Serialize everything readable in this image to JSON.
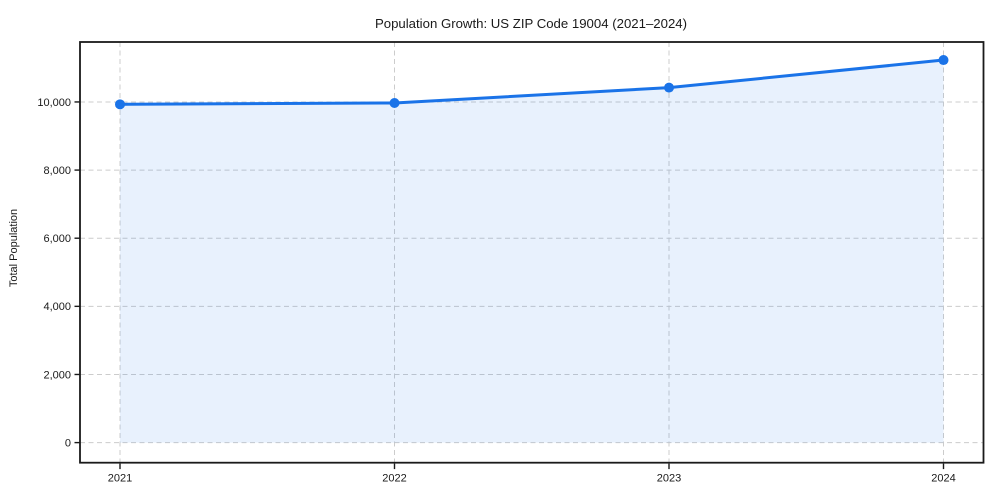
{
  "chart_data": {
    "type": "line",
    "title": "Population Growth: US ZIP Code 19004 (2021–2024)",
    "xlabel": "",
    "ylabel": "Total Population",
    "categories": [
      "2021",
      "2022",
      "2023",
      "2024"
    ],
    "series": [
      {
        "name": "Total Population",
        "values": [
          9930,
          9970,
          10420,
          11230
        ],
        "color": "#1a73e8",
        "marker": "circle",
        "area_fill": true
      }
    ],
    "yticks": [
      0,
      2000,
      4000,
      6000,
      8000,
      10000
    ],
    "ytick_labels": [
      "0",
      "2,000",
      "4,000",
      "6,000",
      "8,000",
      "10,000"
    ],
    "ylim": [
      -590,
      11760
    ],
    "legend": "none",
    "grid": {
      "visible": true,
      "style": "dashed",
      "horizontal": true,
      "vertical": true,
      "color": "#cccccc"
    },
    "colors": {
      "line": "#1a73e8",
      "marker": "#1a73e8",
      "area_fill": "rgba(26,115,232,0.10)",
      "grid": "#cccccc",
      "spine": "#1a1a1a",
      "text": "#1a1a1a",
      "background": "#ffffff"
    }
  }
}
